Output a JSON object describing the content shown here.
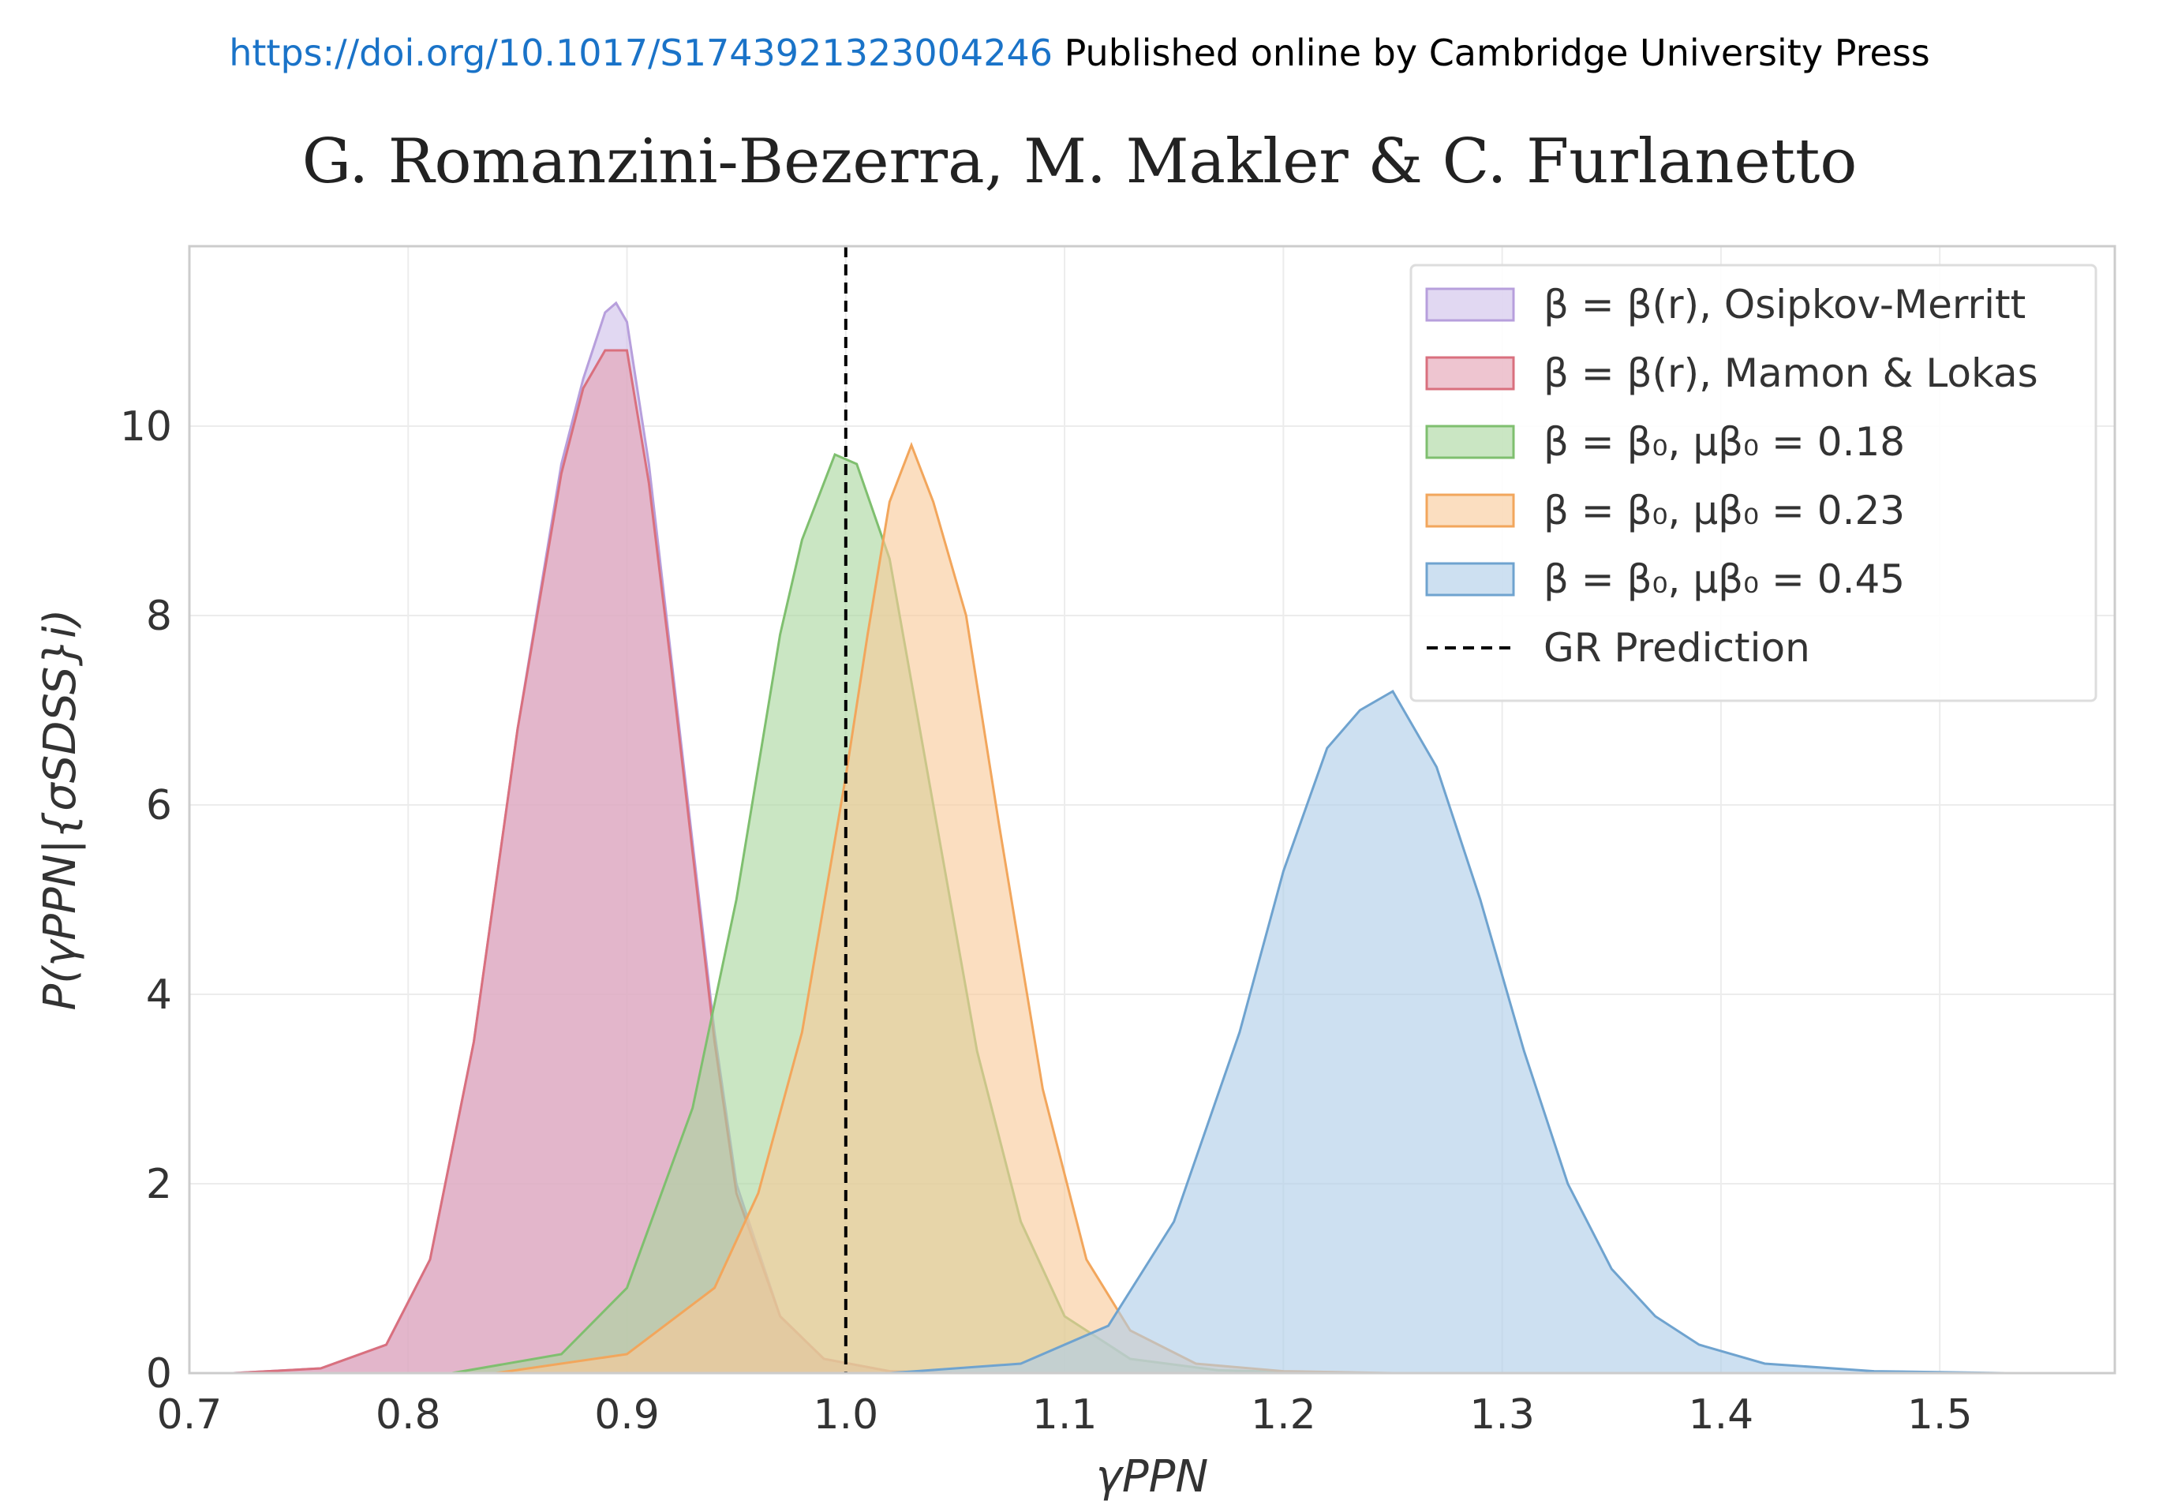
{
  "header": {
    "doi": "https://doi.org/10.1017/S1743921323004246",
    "publisher": "Published online by Cambridge University Press"
  },
  "authors": "G. Romanzini-Bezerra, M. Makler & C. Furlanetto",
  "chart_data": {
    "type": "area",
    "xlabel": "γPPN",
    "ylabel": "P(γPPN|{σSDSS}i)",
    "xlim": [
      0.7,
      1.58
    ],
    "ylim": [
      0,
      11.9
    ],
    "xticks": [
      "0.7",
      "0.8",
      "0.9",
      "1.0",
      "1.1",
      "1.2",
      "1.3",
      "1.4",
      "1.5"
    ],
    "yticks": [
      "0",
      "2",
      "4",
      "6",
      "8",
      "10"
    ],
    "grid": true,
    "legend_position": "top-right",
    "reference_line": {
      "x": 1.0,
      "label": "GR Prediction",
      "color": "#000000"
    },
    "series": [
      {
        "name": "β = β(r), Osipkov-Merritt",
        "color": "#b79fdc",
        "fill": "#cfc0ea",
        "x": [
          0.72,
          0.76,
          0.79,
          0.81,
          0.83,
          0.85,
          0.87,
          0.88,
          0.89,
          0.895,
          0.9,
          0.91,
          0.92,
          0.93,
          0.94,
          0.95,
          0.97,
          0.99,
          1.02,
          1.05
        ],
        "y": [
          0,
          0.05,
          0.3,
          1.2,
          3.5,
          6.8,
          9.6,
          10.5,
          11.2,
          11.3,
          11.1,
          9.6,
          7.6,
          5.6,
          3.6,
          2.0,
          0.6,
          0.15,
          0.02,
          0
        ]
      },
      {
        "name": "β = β(r), Mamon & Lokas",
        "color": "#d9707e",
        "fill": "#e3a1b3",
        "x": [
          0.72,
          0.76,
          0.79,
          0.81,
          0.83,
          0.85,
          0.87,
          0.88,
          0.89,
          0.9,
          0.91,
          0.92,
          0.93,
          0.94,
          0.95,
          0.97,
          0.99,
          1.02,
          1.05
        ],
        "y": [
          0,
          0.05,
          0.3,
          1.2,
          3.5,
          6.8,
          9.5,
          10.4,
          10.8,
          10.8,
          9.4,
          7.5,
          5.5,
          3.5,
          1.9,
          0.6,
          0.15,
          0.02,
          0
        ]
      },
      {
        "name": "β = β₀, μβ₀ = 0.18",
        "color": "#7fbf6f",
        "fill": "#a9d69e",
        "x": [
          0.82,
          0.87,
          0.9,
          0.93,
          0.95,
          0.97,
          0.98,
          0.995,
          1.005,
          1.02,
          1.04,
          1.06,
          1.08,
          1.1,
          1.13,
          1.17,
          1.22
        ],
        "y": [
          0,
          0.2,
          0.9,
          2.8,
          5.0,
          7.8,
          8.8,
          9.7,
          9.6,
          8.6,
          6.0,
          3.4,
          1.6,
          0.6,
          0.15,
          0.03,
          0
        ]
      },
      {
        "name": "β = β₀, μβ₀ = 0.23",
        "color": "#f2a65c",
        "fill": "#f9c99a",
        "x": [
          0.84,
          0.9,
          0.94,
          0.96,
          0.98,
          1.0,
          1.01,
          1.02,
          1.03,
          1.04,
          1.055,
          1.07,
          1.09,
          1.11,
          1.13,
          1.16,
          1.2,
          1.25
        ],
        "y": [
          0,
          0.2,
          0.9,
          1.9,
          3.6,
          6.3,
          7.8,
          9.2,
          9.8,
          9.2,
          8.0,
          5.8,
          3.0,
          1.2,
          0.45,
          0.1,
          0.02,
          0
        ]
      },
      {
        "name": "β = β₀, μβ₀ = 0.45",
        "color": "#6fa3cf",
        "fill": "#aecde8",
        "x": [
          1.02,
          1.08,
          1.12,
          1.15,
          1.18,
          1.2,
          1.22,
          1.235,
          1.25,
          1.27,
          1.29,
          1.31,
          1.33,
          1.35,
          1.37,
          1.39,
          1.42,
          1.47,
          1.53
        ],
        "y": [
          0,
          0.1,
          0.5,
          1.6,
          3.6,
          5.3,
          6.6,
          7.0,
          7.2,
          6.4,
          5.0,
          3.4,
          2.0,
          1.1,
          0.6,
          0.3,
          0.1,
          0.02,
          0
        ]
      }
    ]
  }
}
